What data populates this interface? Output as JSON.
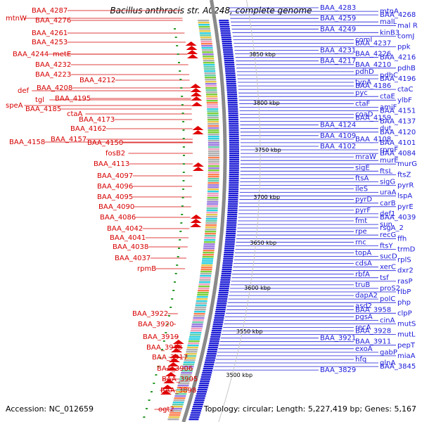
{
  "title": "Bacillus anthracis str. A0248, complete genome",
  "footer": {
    "accession": "Accession: NC_012659",
    "info": "Topology: circular; Length: 5,227,419 bp; Genes: 5,167"
  },
  "colors": {
    "left_label": "#d60000",
    "right_label": "#1a1adb",
    "backbone": "#8a8a8a",
    "forward_gene": "#1f1fd6",
    "reverse_gene": "#e00000",
    "rna_mark": "#2a9a2a"
  },
  "kbp_ticks": [
    {
      "label": "3850 kbp"
    },
    {
      "label": "3800 kbp"
    },
    {
      "label": "3750 kbp"
    },
    {
      "label": "3700 kbp"
    },
    {
      "label": "3650 kbp"
    },
    {
      "label": "3600 kbp"
    },
    {
      "label": "3550 kbp"
    },
    {
      "label": "3500 kbp"
    }
  ],
  "left_labels": [
    "BAA_4287",
    "mtnW",
    "BAA_4276",
    "BAA_4261",
    "BAA_4253",
    "BAA_4244",
    "metE",
    "BAA_4232",
    "BAA_4223",
    "BAA_4212",
    "def",
    "BAA_4208",
    "tgl",
    "BAA_4195",
    "speA",
    "BAA_4185",
    "ctaA",
    "BAA_4173",
    "BAA_4162",
    "BAA_4158",
    "BAA_4157",
    "BAA_4150",
    "fosB2",
    "BAA_4113",
    "BAA_4097",
    "BAA_4096",
    "BAA_4095",
    "BAA_4090",
    "BAA_4086",
    "BAA_4042",
    "BAA_4041",
    "BAA_4038",
    "BAA_4037",
    "rpmB",
    "BAA_3922",
    "BAA_3920",
    "BAA_3919",
    "BAA_3918",
    "BAA_3917",
    "BAA_3906",
    "BAA_3905",
    "BAA_3898",
    "ogt2"
  ],
  "right_labels": [
    "BAA_4283",
    "mtnA",
    "BAA_4268",
    "BAA_4259",
    "malL",
    "mal R",
    "BAA_4249",
    "kinB3",
    "comJ",
    "comI",
    "BAA_4237",
    "ppk",
    "BAA_4231",
    "BAA_4226",
    "BAA_4216",
    "BAA_4217",
    "BAA_4210",
    "pdhB",
    "pdhD",
    "pdhC",
    "BAA_4196",
    "typA",
    "BAA_4186",
    "ctaC",
    "pyc",
    "ctaE",
    "ylbF",
    "ctaF",
    "amiF",
    "BAA_4151",
    "coaD",
    "BAA_4159",
    "BAA_4137",
    "BAA_4124",
    "dut",
    "BAA_4120",
    "BAA_4109",
    "BAA_4108",
    "BAA_4101",
    "BAA_4102",
    "rpmF",
    "BAA_4084",
    "mraW",
    "murE",
    "murG",
    "sigE",
    "ftsL",
    "ftsZ",
    "ftsA",
    "sigG",
    "pyrR",
    "ileS",
    "uraA",
    "lspA",
    "pyrD",
    "carB",
    "pyrE",
    "pyrF",
    "def1",
    "BAA_4039",
    "fmt",
    "sun",
    "rsgA_2",
    "rpe",
    "recG",
    "ffh",
    "rnc",
    "ftsY",
    "trmD",
    "topA",
    "sucD",
    "rplS",
    "cdsA",
    "xerC",
    "dxr2",
    "rbfA",
    "tsf",
    "rasP",
    "truB",
    "proS2",
    "rlbP",
    "dapA2",
    "polC",
    "php",
    "asd2",
    "BAA_3958",
    "clpP",
    "pgsA",
    "cinA",
    "mutS",
    "recA",
    "BAA_3928",
    "mutL",
    "BAA_3921",
    "BAA_3911",
    "pepT",
    "exoA",
    "gabP",
    "miaA",
    "hfq",
    "glnA",
    "BAA_3845",
    "BAA_3829"
  ]
}
